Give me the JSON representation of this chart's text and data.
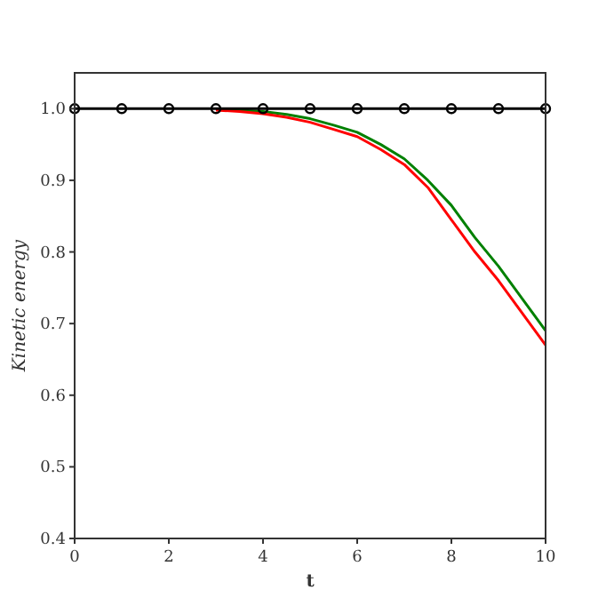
{
  "chart_data": {
    "type": "line",
    "xlabel": "t",
    "ylabel": "Kinetic energy",
    "xlim": [
      0,
      10
    ],
    "ylim": [
      0.4,
      1.05
    ],
    "xticks": [
      0,
      2,
      4,
      6,
      8,
      10
    ],
    "yticks": [
      {
        "value": 0.4,
        "label": "0.4"
      },
      {
        "value": 0.5,
        "label": "0.5"
      },
      {
        "value": 0.6,
        "label": "0.6"
      },
      {
        "value": 0.7,
        "label": "0.7"
      },
      {
        "value": 0.8,
        "label": "0.8"
      },
      {
        "value": 0.9,
        "label": "0.9"
      },
      {
        "value": 1.0,
        "label": "1.0"
      }
    ],
    "grid": false,
    "series": [
      {
        "color": "#008000",
        "x": [
          3,
          3.5,
          4,
          4.5,
          5,
          5.5,
          6,
          6.5,
          7,
          7.5,
          8,
          8.5,
          9,
          9.5,
          10
        ],
        "values": [
          0.999,
          0.998,
          0.996,
          0.992,
          0.986,
          0.977,
          0.967,
          0.95,
          0.93,
          0.9,
          0.865,
          0.82,
          0.78,
          0.735,
          0.69
        ],
        "marker": "none"
      },
      {
        "color": "#ff0000",
        "x": [
          3,
          3.5,
          4,
          4.5,
          5,
          5.5,
          6,
          6.5,
          7,
          7.5,
          8,
          8.5,
          9,
          9.5,
          10
        ],
        "values": [
          0.998,
          0.996,
          0.993,
          0.988,
          0.981,
          0.971,
          0.961,
          0.943,
          0.922,
          0.89,
          0.845,
          0.8,
          0.76,
          0.715,
          0.67
        ],
        "marker": "none"
      },
      {
        "color": "#000000",
        "x": [
          0,
          1,
          2,
          3,
          4,
          5,
          6,
          7,
          8,
          9,
          10
        ],
        "values": [
          1,
          1,
          1,
          1,
          1,
          1,
          1,
          1,
          1,
          1,
          1
        ],
        "marker": "circle"
      }
    ]
  }
}
